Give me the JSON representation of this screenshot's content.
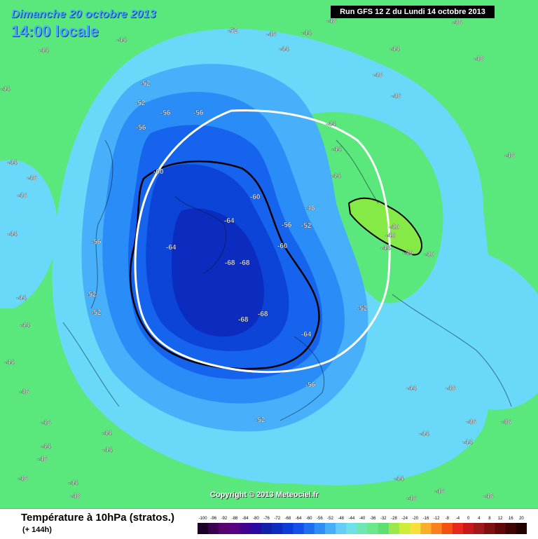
{
  "header": {
    "date": "Dimanche 20 octobre 2013",
    "time": "14:00 locale",
    "run": "Run GFS 12 Z du Lundi 14 octobre 2013"
  },
  "copyright": "Copyright © 2013 Meteociel.fr",
  "footer": {
    "title": "Température à 10hPa (stratos.)",
    "forecast": "(+ 144h)"
  },
  "scale": {
    "labels": [
      "-100",
      "-96",
      "-92",
      "-88",
      "-84",
      "-80",
      "-76",
      "-72",
      "-68",
      "-64",
      "-60",
      "-56",
      "-52",
      "-48",
      "-44",
      "-40",
      "-36",
      "-32",
      "-28",
      "-24",
      "-20",
      "-16",
      "-12",
      "-8",
      "-4",
      "0",
      "4",
      "8",
      "12",
      "16",
      "20"
    ],
    "colors": [
      "#1a0026",
      "#3a0050",
      "#5a006e",
      "#58007f",
      "#400090",
      "#280aa0",
      "#1020a8",
      "#0c2cc0",
      "#0c3cd8",
      "#1450e8",
      "#1e6ef0",
      "#2e8ef6",
      "#48aef8",
      "#66ccf8",
      "#6ee0e8",
      "#6ee8b0",
      "#6ae88a",
      "#5ee070",
      "#9ce84a",
      "#d0ec3a",
      "#f8e03a",
      "#f8b02a",
      "#f8801e",
      "#f45016",
      "#e8281a",
      "#c81818",
      "#a01818",
      "#801010",
      "#600808",
      "#400404",
      "#200000"
    ]
  },
  "colors": {
    "background_green": "#5ae87c",
    "light_blue": "#6ad8f8",
    "blue_52": "#48b0fa",
    "blue_56": "#2a8cf6",
    "blue_60": "#1664ee",
    "blue_64": "#0c44d8",
    "blue_68": "#0c2cc0",
    "lime": "#86ea46",
    "vortex_line": "#ffffff",
    "contour_line": "#000000"
  },
  "map_labels": [
    {
      "text": "-52"
    },
    {
      "text": "-48"
    },
    {
      "text": "-44"
    },
    {
      "text": "-48"
    },
    {
      "text": "-44"
    },
    {
      "text": "-44"
    },
    {
      "text": "-48"
    },
    {
      "text": "-48"
    },
    {
      "text": "-52"
    },
    {
      "text": "-52"
    },
    {
      "text": "-56"
    },
    {
      "text": "-56"
    },
    {
      "text": "-56"
    },
    {
      "text": "-60"
    },
    {
      "text": "-60"
    },
    {
      "text": "-64"
    },
    {
      "text": "-64"
    },
    {
      "text": "-68"
    },
    {
      "text": "-68"
    },
    {
      "text": "-68"
    },
    {
      "text": "-68"
    },
    {
      "text": "-64"
    },
    {
      "text": "-56"
    },
    {
      "text": "-52"
    },
    {
      "text": "-60"
    },
    {
      "text": "-52"
    },
    {
      "text": "-56"
    },
    {
      "text": "-52"
    },
    {
      "text": "-52"
    },
    {
      "text": "-56"
    },
    {
      "text": "-52"
    },
    {
      "text": "-48"
    },
    {
      "text": "-44"
    },
    {
      "text": "-44"
    },
    {
      "text": "-44"
    },
    {
      "text": "-40"
    },
    {
      "text": "-40"
    },
    {
      "text": "-40"
    },
    {
      "text": "-40"
    },
    {
      "text": "-44"
    },
    {
      "text": "-48"
    },
    {
      "text": "-48"
    },
    {
      "text": "-48"
    },
    {
      "text": "-44"
    },
    {
      "text": "-44"
    },
    {
      "text": "-48"
    },
    {
      "text": "-48"
    },
    {
      "text": "-44"
    },
    {
      "text": "-44"
    },
    {
      "text": "-44"
    },
    {
      "text": "-44"
    },
    {
      "text": "-48"
    },
    {
      "text": "-48"
    },
    {
      "text": "-44"
    },
    {
      "text": "-44"
    },
    {
      "text": "-44"
    },
    {
      "text": "-48"
    },
    {
      "text": "-48"
    },
    {
      "text": "-44"
    },
    {
      "text": "-48"
    },
    {
      "text": "-44"
    },
    {
      "text": "-48"
    },
    {
      "text": "-48"
    },
    {
      "text": "-44"
    },
    {
      "text": "-44"
    },
    {
      "text": "-44"
    },
    {
      "text": "-48"
    },
    {
      "text": "-48"
    },
    {
      "text": "-48"
    },
    {
      "text": "-48"
    },
    {
      "text": "-44"
    },
    {
      "text": "-44"
    }
  ]
}
